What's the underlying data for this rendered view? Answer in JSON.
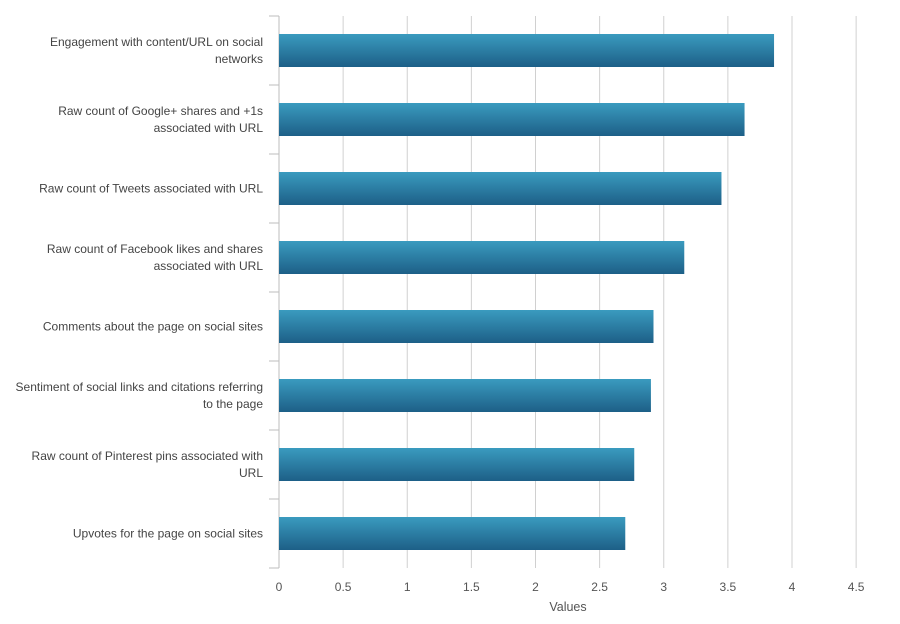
{
  "chart_data": {
    "type": "bar",
    "orientation": "horizontal",
    "categories": [
      [
        "Engagement with content/URL on social",
        "networks"
      ],
      [
        "Raw count of Google+ shares and +1s",
        "associated with URL"
      ],
      [
        "Raw count of Tweets associated with URL"
      ],
      [
        "Raw count of Facebook likes and shares",
        "associated with URL"
      ],
      [
        "Comments about the page on social sites"
      ],
      [
        "Sentiment of social links and citations referring",
        "to the page"
      ],
      [
        "Raw count of Pinterest pins associated with",
        "URL"
      ],
      [
        "Upvotes for the page on social sites"
      ]
    ],
    "values": [
      3.86,
      3.63,
      3.45,
      3.16,
      2.92,
      2.9,
      2.77,
      2.7
    ],
    "xlabel": "Values",
    "ylabel": "",
    "xlim": [
      0,
      4.5
    ],
    "xticks": [
      0,
      0.5,
      1,
      1.5,
      2,
      2.5,
      3,
      3.5,
      4,
      4.5
    ],
    "xtick_labels": [
      "0",
      "0.5",
      "1",
      "1.5",
      "2",
      "2.5",
      "3",
      "3.5",
      "4",
      "4.5"
    ],
    "grid": "vertical",
    "legend": "none",
    "colors": {
      "bar_top": "#3a9bbf",
      "bar_bottom": "#1d5f87",
      "grid": "#d0d0d0",
      "axis": "#bdbdbd",
      "label": "#444444"
    }
  }
}
